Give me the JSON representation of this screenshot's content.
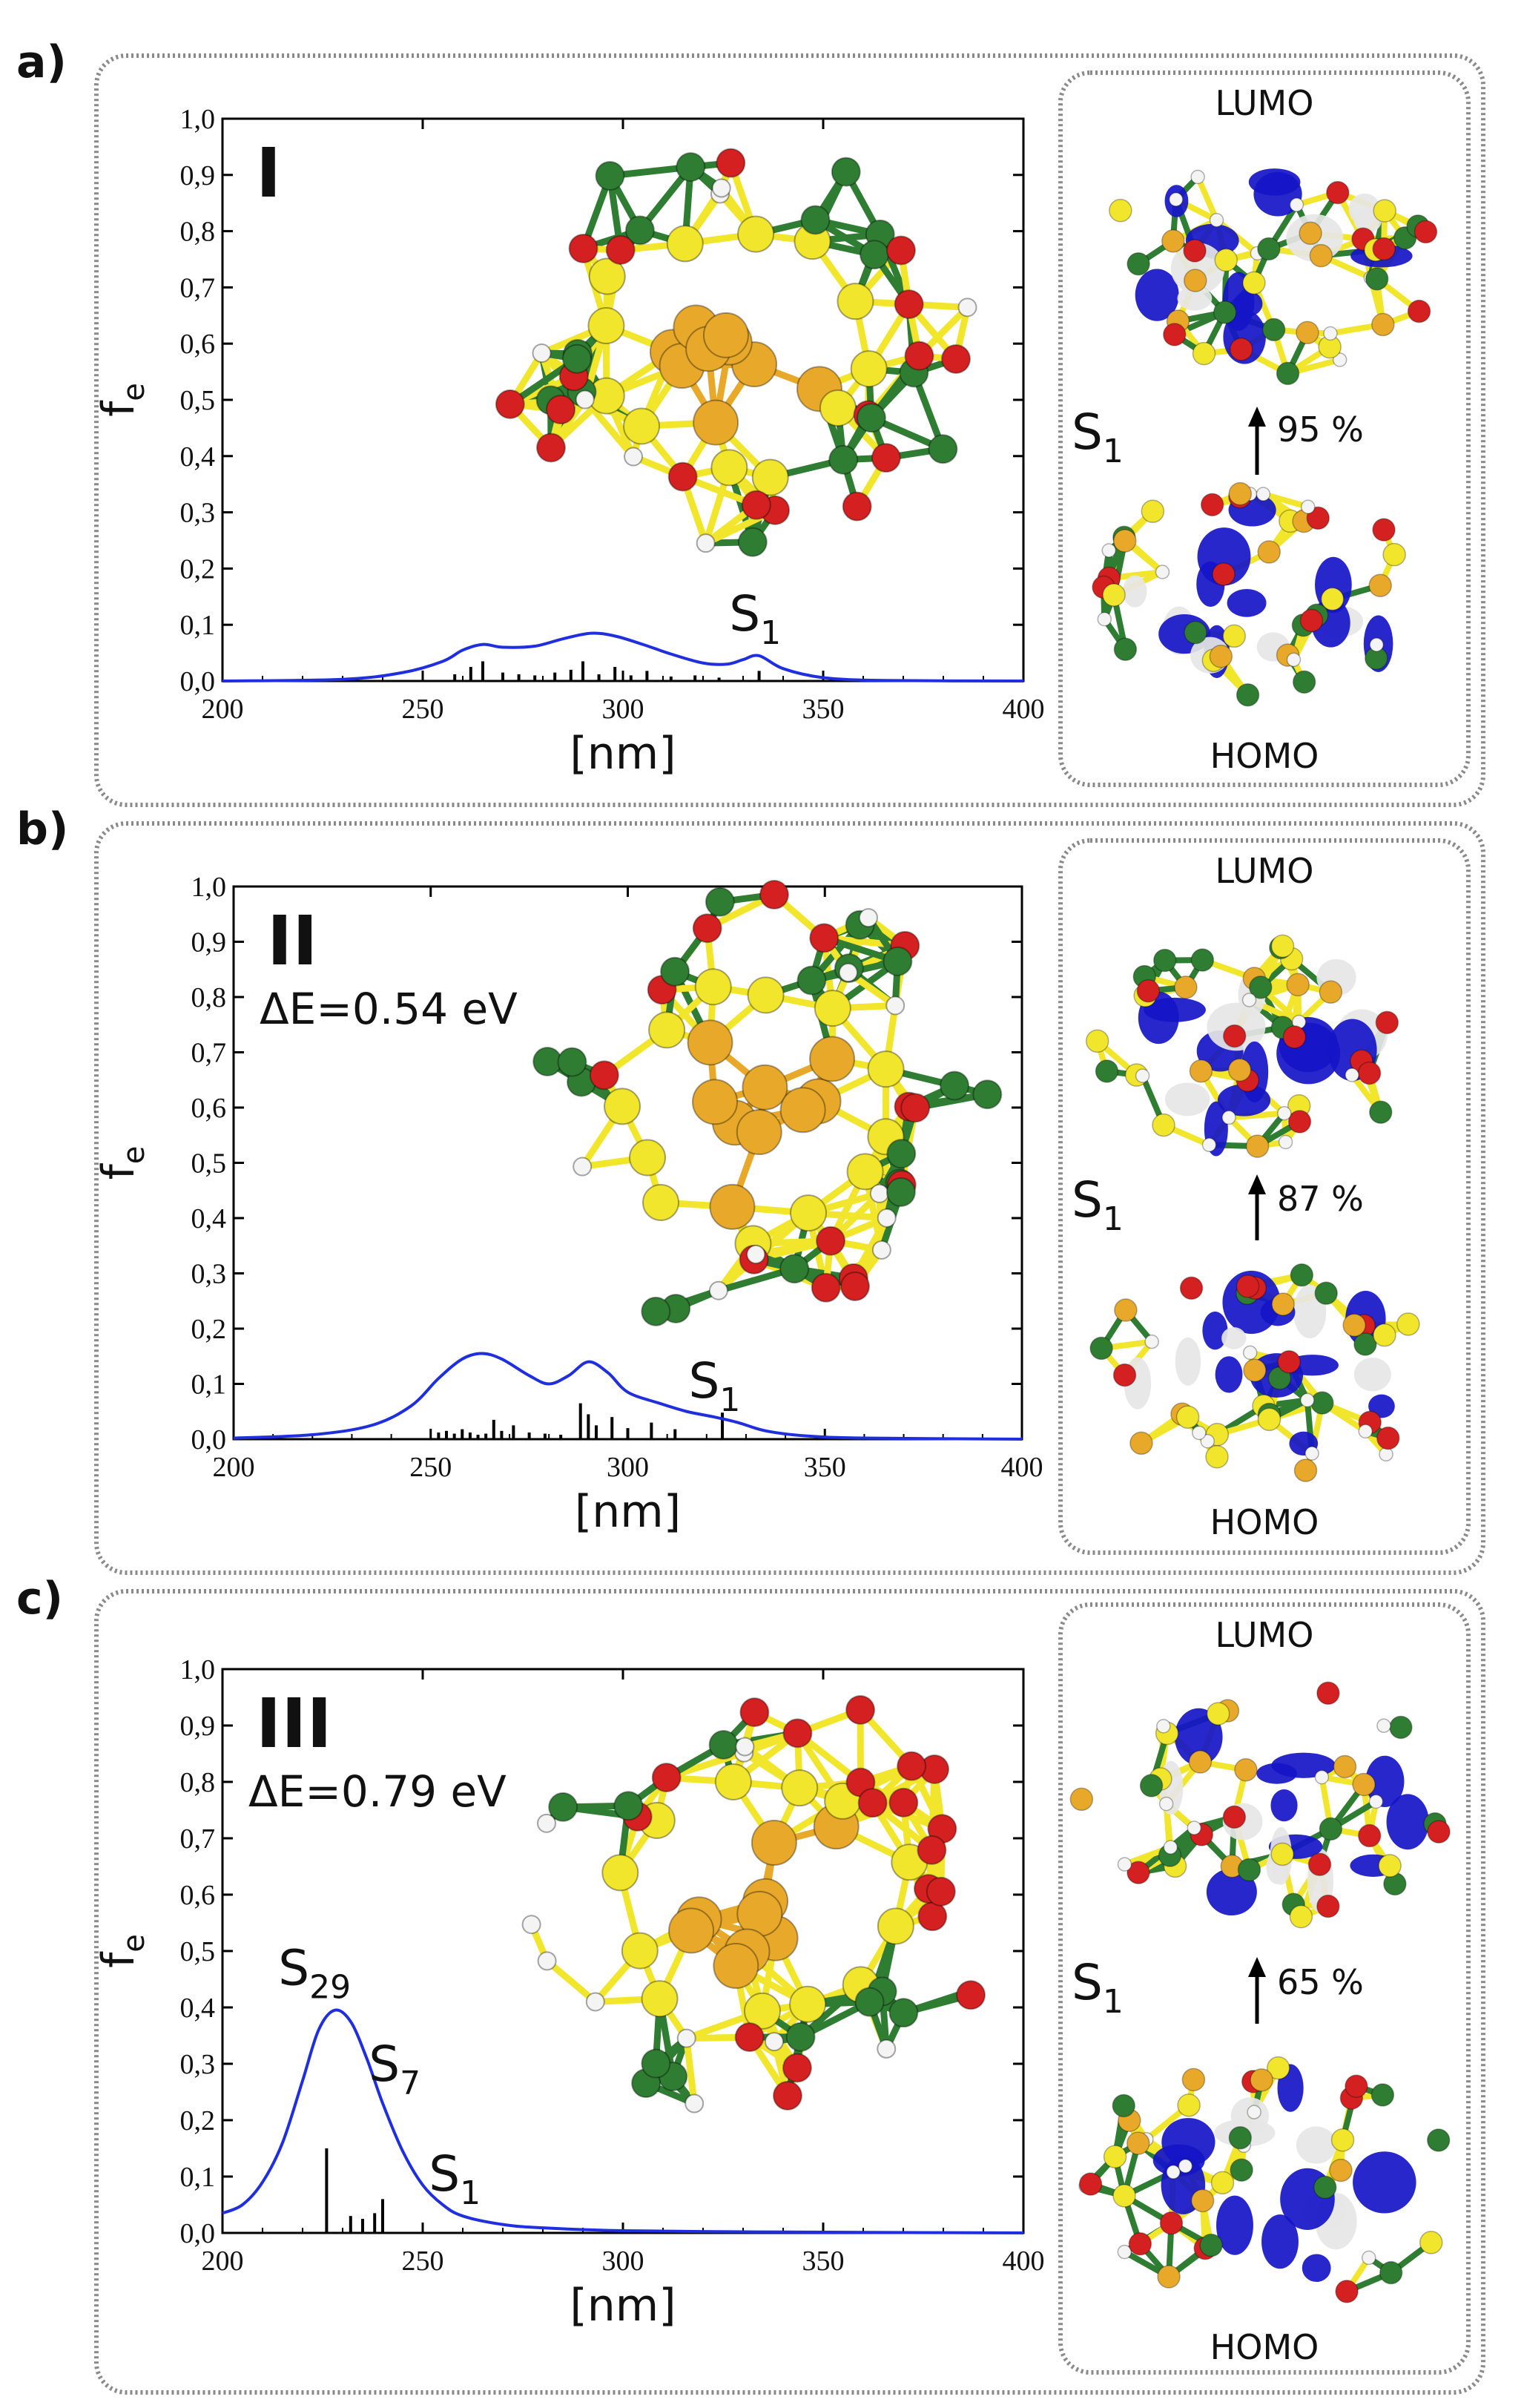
{
  "panels": [
    {
      "letter": "a)",
      "roman": "I",
      "delta_e": "",
      "ylabel": "f",
      "ylabel_sub": "e",
      "xlabel": "[nm]",
      "transition_pct": "95 %",
      "state": "S",
      "state_sub": "1",
      "lumo_label": "LUMO",
      "homo_label": "HOMO"
    },
    {
      "letter": "b)",
      "roman": "II",
      "delta_e": "ΔE=0.54 eV",
      "ylabel": "f",
      "ylabel_sub": "e",
      "xlabel": "[nm]",
      "transition_pct": "87 %",
      "state": "S",
      "state_sub": "1",
      "lumo_label": "LUMO",
      "homo_label": "HOMO"
    },
    {
      "letter": "c)",
      "roman": "III",
      "delta_e": "ΔE=0.79 eV",
      "ylabel": "f",
      "ylabel_sub": "e",
      "xlabel": "[nm]",
      "transition_pct": "65 %",
      "state": "S",
      "state_sub": "1",
      "lumo_label": "LUMO",
      "homo_label": "HOMO"
    }
  ],
  "chart_data": [
    {
      "type": "line",
      "xlabel": "[nm]",
      "ylabel": "f_e",
      "xlim": [
        200,
        400
      ],
      "ylim": [
        0,
        1.0
      ],
      "x_ticks": [
        "200",
        "250",
        "300",
        "350",
        "400"
      ],
      "y_ticks": [
        "0,0",
        "0,1",
        "0,2",
        "0,3",
        "0,4",
        "0,5",
        "0,6",
        "0,7",
        "0,8",
        "0,9",
        "1,0"
      ],
      "spectrum": {
        "x": [
          200,
          230,
          245,
          255,
          260,
          265,
          270,
          278,
          285,
          292,
          298,
          305,
          312,
          320,
          326,
          330,
          334,
          340,
          350,
          365,
          400
        ],
        "y": [
          0.0,
          0.003,
          0.015,
          0.035,
          0.055,
          0.065,
          0.06,
          0.062,
          0.075,
          0.085,
          0.08,
          0.065,
          0.048,
          0.032,
          0.03,
          0.038,
          0.045,
          0.022,
          0.006,
          0.001,
          0.0
        ]
      },
      "sticks": {
        "x": [
          258,
          262,
          265,
          270,
          274,
          278,
          283,
          287,
          290,
          294,
          298,
          302,
          306,
          312,
          318,
          324,
          334
        ],
        "y": [
          0.012,
          0.025,
          0.035,
          0.015,
          0.012,
          0.01,
          0.015,
          0.02,
          0.035,
          0.012,
          0.025,
          0.01,
          0.018,
          0.008,
          0.01,
          0.006,
          0.018
        ]
      },
      "annotations": [
        {
          "text": "S",
          "sub": "1",
          "x": 333,
          "y": 0.09
        }
      ]
    },
    {
      "type": "line",
      "xlabel": "[nm]",
      "ylabel": "f_e",
      "xlim": [
        200,
        400
      ],
      "ylim": [
        0,
        1.0
      ],
      "x_ticks": [
        "200",
        "250",
        "300",
        "350",
        "400"
      ],
      "y_ticks": [
        "0,0",
        "0,1",
        "0,2",
        "0,3",
        "0,4",
        "0,5",
        "0,6",
        "0,7",
        "0,8",
        "0,9",
        "1,0"
      ],
      "spectrum": {
        "x": [
          200,
          220,
          235,
          245,
          252,
          258,
          263,
          268,
          275,
          280,
          285,
          290,
          295,
          300,
          308,
          315,
          322,
          328,
          335,
          345,
          360,
          400
        ],
        "y": [
          0.002,
          0.008,
          0.025,
          0.06,
          0.11,
          0.145,
          0.155,
          0.145,
          0.115,
          0.1,
          0.115,
          0.14,
          0.12,
          0.085,
          0.065,
          0.05,
          0.04,
          0.03,
          0.015,
          0.006,
          0.002,
          0.0
        ]
      },
      "sticks": {
        "x": [
          252,
          254,
          256,
          258,
          260,
          262,
          264,
          266,
          268,
          271,
          275,
          279,
          283,
          288,
          290,
          292,
          296,
          300,
          306,
          312,
          324
        ],
        "y": [
          0.012,
          0.015,
          0.01,
          0.018,
          0.012,
          0.008,
          0.01,
          0.035,
          0.015,
          0.025,
          0.012,
          0.01,
          0.008,
          0.065,
          0.045,
          0.025,
          0.04,
          0.02,
          0.03,
          0.018,
          0.048
        ]
      },
      "annotations": [
        {
          "text": "S",
          "sub": "1",
          "x": 322,
          "y": 0.075
        }
      ]
    },
    {
      "type": "line",
      "xlabel": "[nm]",
      "ylabel": "f_e",
      "xlim": [
        200,
        400
      ],
      "ylim": [
        0,
        1.0
      ],
      "x_ticks": [
        "200",
        "250",
        "300",
        "350",
        "400"
      ],
      "y_ticks": [
        "0,0",
        "0,1",
        "0,2",
        "0,3",
        "0,4",
        "0,5",
        "0,6",
        "0,7",
        "0,8",
        "0,9",
        "1,0"
      ],
      "spectrum": {
        "x": [
          200,
          205,
          210,
          215,
          220,
          224,
          228,
          232,
          236,
          240,
          245,
          250,
          255,
          260,
          270,
          280,
          300,
          330,
          360,
          400
        ],
        "y": [
          0.035,
          0.05,
          0.09,
          0.16,
          0.27,
          0.36,
          0.395,
          0.375,
          0.31,
          0.23,
          0.145,
          0.085,
          0.05,
          0.03,
          0.015,
          0.009,
          0.004,
          0.002,
          0.001,
          0.0
        ]
      },
      "sticks": {
        "x": [
          226,
          232,
          235,
          238,
          240
        ],
        "y": [
          0.15,
          0.03,
          0.025,
          0.035,
          0.06
        ]
      },
      "annotations": [
        {
          "text": "S",
          "sub": "29",
          "x": 223,
          "y": 0.44
        },
        {
          "text": "S",
          "sub": "7",
          "x": 243,
          "y": 0.27
        },
        {
          "text": "S",
          "sub": "1",
          "x": 258,
          "y": 0.075
        }
      ]
    }
  ],
  "colors": {
    "spectrum": "#1f2fe0",
    "sticks": "#000000",
    "gold": "#e8a92a",
    "sulfur": "#f2e62c",
    "carbon": "#2f7d32",
    "oxygen": "#d42020",
    "hydrogen": "#f4f4f4",
    "orbital_blue": "#1515c8",
    "orbital_white": "#e6e6e6"
  }
}
